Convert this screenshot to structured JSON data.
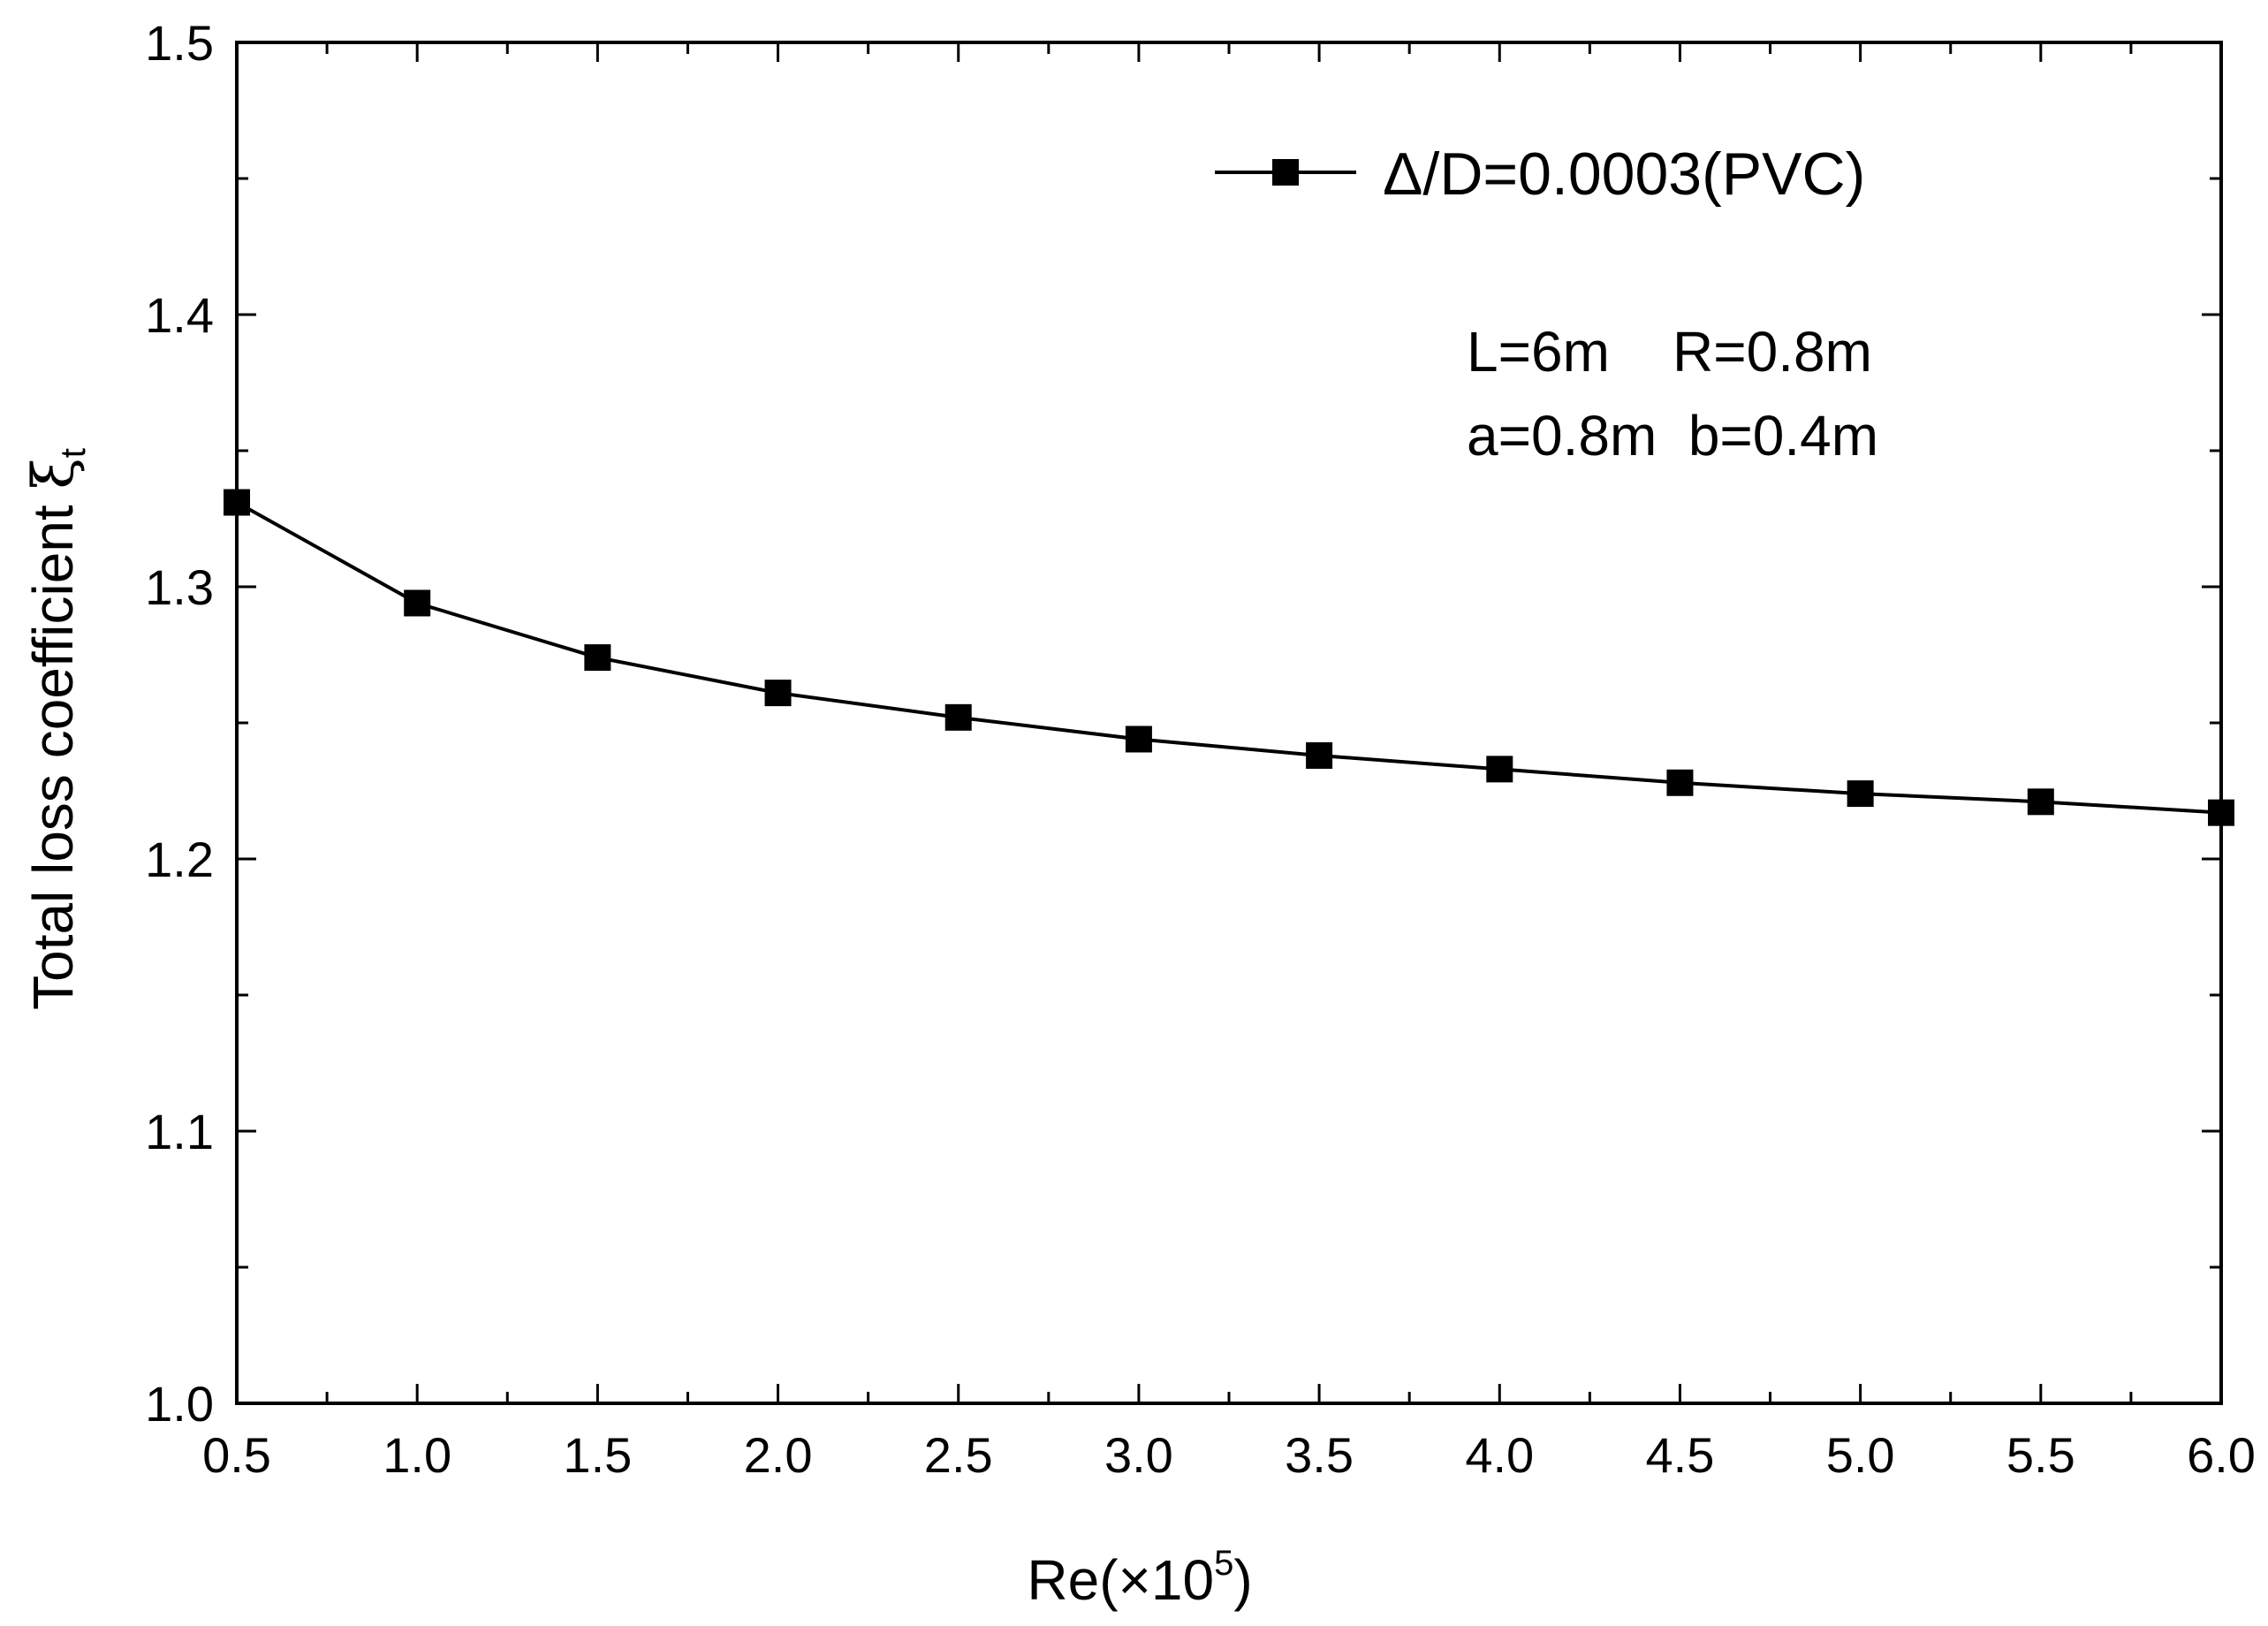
{
  "chart_data": {
    "type": "line",
    "title": "",
    "xlabel": {
      "prefix": "Re(×10",
      "sup": "5",
      "suffix": ")"
    },
    "ylabel": {
      "main": "Total loss coefficient ",
      "symbol": "ξ",
      "sub": "t"
    },
    "xlim": [
      0.5,
      6.0
    ],
    "ylim": [
      1.0,
      1.5
    ],
    "x_ticks": [
      "0.5",
      "1.0",
      "1.5",
      "2.0",
      "2.5",
      "3.0",
      "3.5",
      "4.0",
      "4.5",
      "5.0",
      "5.5",
      "6.0"
    ],
    "y_ticks": [
      "1.0",
      "1.1",
      "1.2",
      "1.3",
      "1.4",
      "1.5"
    ],
    "series": [
      {
        "name": "Δ/D=0.0003(PVC)",
        "marker": "square",
        "color": "#000000",
        "x": [
          0.5,
          1.0,
          1.5,
          2.0,
          2.5,
          3.0,
          3.5,
          4.0,
          4.5,
          5.0,
          5.5,
          6.0
        ],
        "y": [
          1.331,
          1.294,
          1.274,
          1.261,
          1.252,
          1.244,
          1.238,
          1.233,
          1.228,
          1.224,
          1.221,
          1.217
        ]
      }
    ],
    "legend_position": "top-right",
    "annotations": [
      "L=6m    R=0.8m",
      "a=0.8m  b=0.4m"
    ]
  }
}
